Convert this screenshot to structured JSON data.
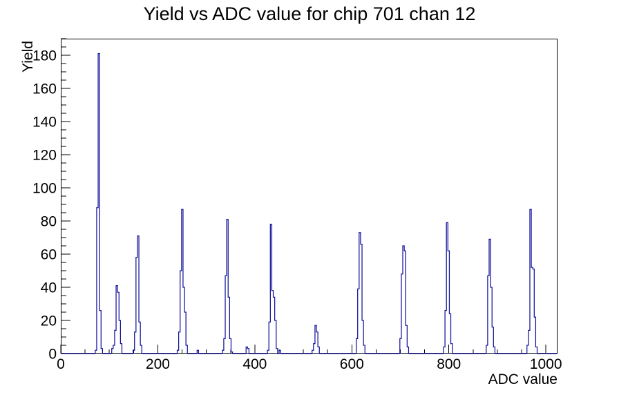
{
  "chart_data": {
    "type": "histogram",
    "title": "Yield vs ADC value for chip 701 chan 12",
    "xlabel": "ADC value",
    "ylabel": "Yield",
    "xlim": [
      0,
      1024
    ],
    "ylim": [
      0,
      190
    ],
    "x_major_ticks": [
      0,
      200,
      400,
      600,
      800,
      1000
    ],
    "x_minor_step": 50,
    "y_major_ticks": [
      0,
      20,
      40,
      60,
      80,
      100,
      120,
      140,
      160,
      180
    ],
    "y_minor_step": 5,
    "grid": false,
    "legend": "none",
    "line_color": "#12129a",
    "frame_color": "#000000",
    "bin_width": 3,
    "bins": [
      [
        71,
        2
      ],
      [
        74,
        88
      ],
      [
        77,
        181
      ],
      [
        80,
        26
      ],
      [
        83,
        3
      ],
      [
        105,
        3
      ],
      [
        108,
        5
      ],
      [
        111,
        14
      ],
      [
        114,
        41
      ],
      [
        117,
        37
      ],
      [
        120,
        20
      ],
      [
        123,
        6
      ],
      [
        149,
        2
      ],
      [
        152,
        13
      ],
      [
        155,
        58
      ],
      [
        158,
        71
      ],
      [
        161,
        19
      ],
      [
        164,
        5
      ],
      [
        240,
        2
      ],
      [
        243,
        13
      ],
      [
        246,
        50
      ],
      [
        249,
        87
      ],
      [
        252,
        40
      ],
      [
        255,
        25
      ],
      [
        258,
        5
      ],
      [
        281,
        2
      ],
      [
        333,
        2
      ],
      [
        336,
        9
      ],
      [
        339,
        47
      ],
      [
        342,
        81
      ],
      [
        345,
        34
      ],
      [
        348,
        9
      ],
      [
        351,
        1
      ],
      [
        382,
        4
      ],
      [
        385,
        3
      ],
      [
        426,
        2
      ],
      [
        429,
        19
      ],
      [
        432,
        78
      ],
      [
        435,
        38
      ],
      [
        438,
        34
      ],
      [
        441,
        20
      ],
      [
        444,
        3
      ],
      [
        450,
        2
      ],
      [
        518,
        2
      ],
      [
        521,
        6
      ],
      [
        524,
        17
      ],
      [
        527,
        13
      ],
      [
        530,
        4
      ],
      [
        609,
        9
      ],
      [
        612,
        39
      ],
      [
        615,
        73
      ],
      [
        618,
        66
      ],
      [
        621,
        20
      ],
      [
        624,
        5
      ],
      [
        699,
        9
      ],
      [
        702,
        48
      ],
      [
        705,
        65
      ],
      [
        708,
        62
      ],
      [
        711,
        17
      ],
      [
        714,
        4
      ],
      [
        789,
        4
      ],
      [
        792,
        26
      ],
      [
        795,
        79
      ],
      [
        798,
        62
      ],
      [
        801,
        24
      ],
      [
        804,
        6
      ],
      [
        877,
        5
      ],
      [
        880,
        47
      ],
      [
        883,
        69
      ],
      [
        886,
        40
      ],
      [
        889,
        16
      ],
      [
        892,
        4
      ],
      [
        961,
        5
      ],
      [
        964,
        14
      ],
      [
        967,
        87
      ],
      [
        970,
        52
      ],
      [
        973,
        51
      ],
      [
        976,
        22
      ],
      [
        979,
        4
      ]
    ]
  }
}
